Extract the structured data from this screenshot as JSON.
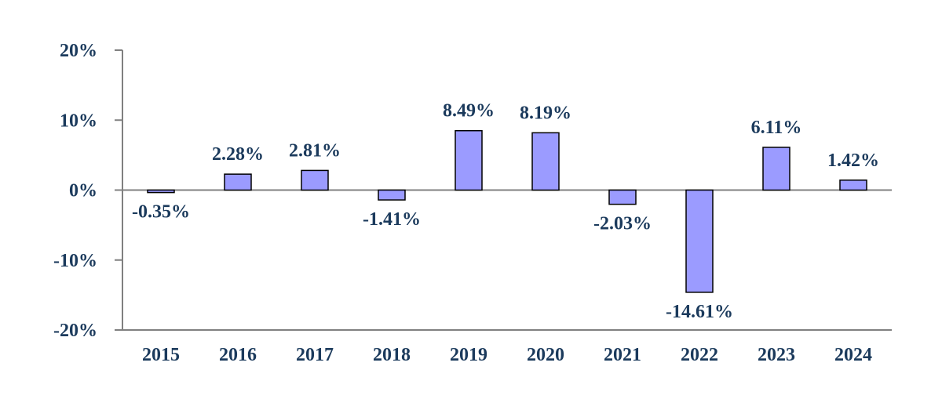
{
  "chart_data": {
    "type": "bar",
    "title": "",
    "xlabel": "",
    "ylabel": "",
    "categories": [
      "2015",
      "2016",
      "2017",
      "2018",
      "2019",
      "2020",
      "2021",
      "2022",
      "2023",
      "2024"
    ],
    "values": [
      -0.35,
      2.28,
      2.81,
      -1.41,
      8.49,
      8.19,
      -2.03,
      -14.61,
      6.11,
      1.42
    ],
    "value_labels": [
      "-0.35%",
      "2.28%",
      "2.81%",
      "-1.41%",
      "8.49%",
      "8.19%",
      "-2.03%",
      "-14.61%",
      "6.11%",
      "1.42%"
    ],
    "ylim": [
      -20,
      20
    ],
    "yticks": [
      20,
      10,
      0,
      -10,
      -20
    ],
    "ytick_labels": [
      "20%",
      "10%",
      "0%",
      "-10%",
      "-20%"
    ],
    "grid": false,
    "legend": "none",
    "colors": {
      "bar_fill": "#9b9bff",
      "bar_stroke": "#000000",
      "text": "#1b3a5c",
      "axis": "#808080"
    }
  }
}
